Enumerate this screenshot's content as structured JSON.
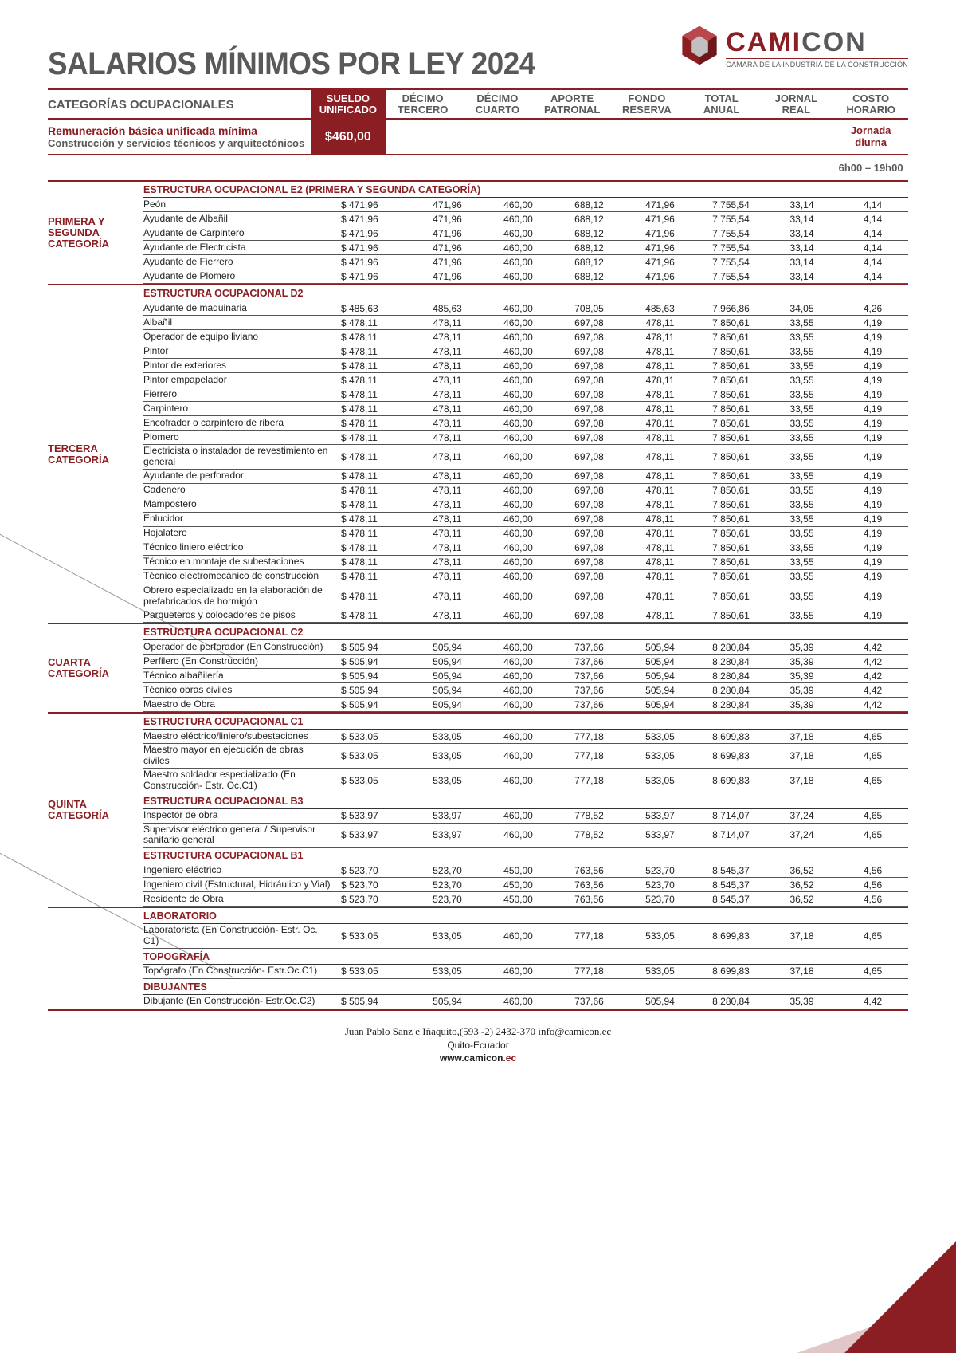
{
  "title": "SALARIOS MÍNIMOS POR LEY 2024",
  "logo": {
    "main1": "CAMI",
    "main2": "CON",
    "sub": "CÁMARA DE LA INDUSTRIA DE LA CONSTRUCCIÓN"
  },
  "band": {
    "left": "CATEGORÍAS OCUPACIONALES",
    "cols": [
      {
        "l1": "SUELDO",
        "l2": "UNIFICADO",
        "hl": true
      },
      {
        "l1": "DÉCIMO",
        "l2": "TERCERO"
      },
      {
        "l1": "DÉCIMO",
        "l2": "CUARTO"
      },
      {
        "l1": "APORTE",
        "l2": "PATRONAL"
      },
      {
        "l1": "FONDO",
        "l2": "RESERVA"
      },
      {
        "l1": "TOTAL",
        "l2": "ANUAL"
      },
      {
        "l1": "JORNAL",
        "l2": "REAL"
      },
      {
        "l1": "COSTO",
        "l2": "HORARIO"
      }
    ]
  },
  "subband": {
    "l1": "Remuneración básica unificada mínima",
    "l2": "Construcción y servicios técnicos y arquitectónicos",
    "sueldo": "$460,00",
    "jornada": "Jornada diurna"
  },
  "hours": "6h00 – 19h00",
  "sections": [
    {
      "category": "PRIMERA Y SEGUNDA CATEGORÍA",
      "groups": [
        {
          "header": "ESTRUCTURA OCUPACIONAL E2 (PRIMERA Y SEGUNDA CATEGORÍA)",
          "rows": [
            {
              "d": "Peón",
              "v": [
                "$ 471,96",
                "471,96",
                "460,00",
                "688,12",
                "471,96",
                "7.755,54",
                "33,14",
                "4,14"
              ]
            },
            {
              "d": "Ayudante de Albañil",
              "v": [
                "$ 471,96",
                "471,96",
                "460,00",
                "688,12",
                "471,96",
                "7.755,54",
                "33,14",
                "4,14"
              ]
            },
            {
              "d": "Ayudante de Carpintero",
              "v": [
                "$ 471,96",
                "471,96",
                "460,00",
                "688,12",
                "471,96",
                "7.755,54",
                "33,14",
                "4,14"
              ]
            },
            {
              "d": "Ayudante de Electricista",
              "v": [
                "$ 471,96",
                "471,96",
                "460,00",
                "688,12",
                "471,96",
                "7.755,54",
                "33,14",
                "4,14"
              ]
            },
            {
              "d": "Ayudante de Fierrero",
              "v": [
                "$ 471,96",
                "471,96",
                "460,00",
                "688,12",
                "471,96",
                "7.755,54",
                "33,14",
                "4,14"
              ]
            },
            {
              "d": "Ayudante de Plomero",
              "v": [
                "$ 471,96",
                "471,96",
                "460,00",
                "688,12",
                "471,96",
                "7.755,54",
                "33,14",
                "4,14"
              ]
            }
          ]
        }
      ]
    },
    {
      "category": "TERCERA CATEGORÍA",
      "groups": [
        {
          "header": "ESTRUCTURA OCUPACIONAL D2",
          "rows": [
            {
              "d": "Ayudante de maquinaria",
              "v": [
                "$ 485,63",
                "485,63",
                "460,00",
                "708,05",
                "485,63",
                "7.966,86",
                "34,05",
                "4,26"
              ]
            },
            {
              "d": "Albañil",
              "v": [
                "$ 478,11",
                "478,11",
                "460,00",
                "697,08",
                "478,11",
                "7.850,61",
                "33,55",
                "4,19"
              ]
            },
            {
              "d": "Operador de equipo liviano",
              "v": [
                "$ 478,11",
                "478,11",
                "460,00",
                "697,08",
                "478,11",
                "7.850,61",
                "33,55",
                "4,19"
              ]
            },
            {
              "d": "Pintor",
              "v": [
                "$ 478,11",
                "478,11",
                "460,00",
                "697,08",
                "478,11",
                "7.850,61",
                "33,55",
                "4,19"
              ]
            },
            {
              "d": "Pintor de exteriores",
              "v": [
                "$ 478,11",
                "478,11",
                "460,00",
                "697,08",
                "478,11",
                "7.850,61",
                "33,55",
                "4,19"
              ]
            },
            {
              "d": "Pintor empapelador",
              "v": [
                "$ 478,11",
                "478,11",
                "460,00",
                "697,08",
                "478,11",
                "7.850,61",
                "33,55",
                "4,19"
              ]
            },
            {
              "d": "Fierrero",
              "v": [
                "$ 478,11",
                "478,11",
                "460,00",
                "697,08",
                "478,11",
                "7.850,61",
                "33,55",
                "4,19"
              ]
            },
            {
              "d": "Carpintero",
              "v": [
                "$ 478,11",
                "478,11",
                "460,00",
                "697,08",
                "478,11",
                "7.850,61",
                "33,55",
                "4,19"
              ]
            },
            {
              "d": "Encofrador o carpintero de ribera",
              "v": [
                "$ 478,11",
                "478,11",
                "460,00",
                "697,08",
                "478,11",
                "7.850,61",
                "33,55",
                "4,19"
              ]
            },
            {
              "d": "Plomero",
              "v": [
                "$ 478,11",
                "478,11",
                "460,00",
                "697,08",
                "478,11",
                "7.850,61",
                "33,55",
                "4,19"
              ]
            },
            {
              "d": "Electricista o instalador de revestimiento en general",
              "v": [
                "$ 478,11",
                "478,11",
                "460,00",
                "697,08",
                "478,11",
                "7.850,61",
                "33,55",
                "4,19"
              ]
            },
            {
              "d": "Ayudante de perforador",
              "v": [
                "$ 478,11",
                "478,11",
                "460,00",
                "697,08",
                "478,11",
                "7.850,61",
                "33,55",
                "4,19"
              ]
            },
            {
              "d": "Cadenero",
              "v": [
                "$ 478,11",
                "478,11",
                "460,00",
                "697,08",
                "478,11",
                "7.850,61",
                "33,55",
                "4,19"
              ]
            },
            {
              "d": "Mampostero",
              "v": [
                "$ 478,11",
                "478,11",
                "460,00",
                "697,08",
                "478,11",
                "7.850,61",
                "33,55",
                "4,19"
              ]
            },
            {
              "d": "Enlucidor",
              "v": [
                "$ 478,11",
                "478,11",
                "460,00",
                "697,08",
                "478,11",
                "7.850,61",
                "33,55",
                "4,19"
              ]
            },
            {
              "d": "Hojalatero",
              "v": [
                "$ 478,11",
                "478,11",
                "460,00",
                "697,08",
                "478,11",
                "7.850,61",
                "33,55",
                "4,19"
              ]
            },
            {
              "d": "Técnico liniero eléctrico",
              "v": [
                "$ 478,11",
                "478,11",
                "460,00",
                "697,08",
                "478,11",
                "7.850,61",
                "33,55",
                "4,19"
              ]
            },
            {
              "d": "Técnico en montaje de subestaciones",
              "v": [
                "$ 478,11",
                "478,11",
                "460,00",
                "697,08",
                "478,11",
                "7.850,61",
                "33,55",
                "4,19"
              ]
            },
            {
              "d": "Técnico electromecánico de construcción",
              "v": [
                "$ 478,11",
                "478,11",
                "460,00",
                "697,08",
                "478,11",
                "7.850,61",
                "33,55",
                "4,19"
              ]
            },
            {
              "d": "Obrero especializado en la elaboración de prefabricados de hormigón",
              "v": [
                "$ 478,11",
                "478,11",
                "460,00",
                "697,08",
                "478,11",
                "7.850,61",
                "33,55",
                "4,19"
              ]
            },
            {
              "d": "Parqueteros y colocadores de pisos",
              "v": [
                "$ 478,11",
                "478,11",
                "460,00",
                "697,08",
                "478,11",
                "7.850,61",
                "33,55",
                "4,19"
              ]
            }
          ]
        }
      ]
    },
    {
      "category": "CUARTA CATEGORÍA",
      "groups": [
        {
          "header": "ESTRUCTURA OCUPACIONAL C2",
          "rows": [
            {
              "d": "Operador de perforador (En Construcción)",
              "v": [
                "$ 505,94",
                "505,94",
                "460,00",
                "737,66",
                "505,94",
                "8.280,84",
                "35,39",
                "4,42"
              ]
            },
            {
              "d": "Perfilero (En Construcción)",
              "v": [
                "$ 505,94",
                "505,94",
                "460,00",
                "737,66",
                "505,94",
                "8.280,84",
                "35,39",
                "4,42"
              ]
            },
            {
              "d": "Técnico albañilería",
              "v": [
                "$ 505,94",
                "505,94",
                "460,00",
                "737,66",
                "505,94",
                "8.280,84",
                "35,39",
                "4,42"
              ]
            },
            {
              "d": "Técnico obras civiles",
              "v": [
                "$ 505,94",
                "505,94",
                "460,00",
                "737,66",
                "505,94",
                "8.280,84",
                "35,39",
                "4,42"
              ]
            },
            {
              "d": "Maestro de Obra",
              "v": [
                "$ 505,94",
                "505,94",
                "460,00",
                "737,66",
                "505,94",
                "8.280,84",
                "35,39",
                "4,42"
              ]
            }
          ]
        }
      ]
    },
    {
      "category": "QUINTA CATEGORÍA",
      "groups": [
        {
          "header": "ESTRUCTURA OCUPACIONAL C1",
          "rows": [
            {
              "d": "Maestro eléctrico/liniero/subestaciones",
              "v": [
                "$ 533,05",
                "533,05",
                "460,00",
                "777,18",
                "533,05",
                "8.699,83",
                "37,18",
                "4,65"
              ]
            },
            {
              "d": "Maestro mayor en ejecución de obras civiles",
              "v": [
                "$ 533,05",
                "533,05",
                "460,00",
                "777,18",
                "533,05",
                "8.699,83",
                "37,18",
                "4,65"
              ]
            },
            {
              "d": "Maestro soldador especializado (En Construcción- Estr. Oc.C1)",
              "v": [
                "$ 533,05",
                "533,05",
                "460,00",
                "777,18",
                "533,05",
                "8.699,83",
                "37,18",
                "4,65"
              ]
            }
          ]
        },
        {
          "header": "ESTRUCTURA OCUPACIONAL B3",
          "rows": [
            {
              "d": "Inspector de obra",
              "v": [
                "$ 533,97",
                "533,97",
                "460,00",
                "778,52",
                "533,97",
                "8.714,07",
                "37,24",
                "4,65"
              ]
            },
            {
              "d": "Supervisor eléctrico general / Supervisor sanitario general",
              "v": [
                "$ 533,97",
                "533,97",
                "460,00",
                "778,52",
                "533,97",
                "8.714,07",
                "37,24",
                "4,65"
              ]
            }
          ]
        },
        {
          "header": "ESTRUCTURA OCUPACIONAL B1",
          "rows": [
            {
              "d": "Ingeniero eléctrico",
              "v": [
                "$ 523,70",
                "523,70",
                "450,00",
                "763,56",
                "523,70",
                "8.545,37",
                "36,52",
                "4,56"
              ]
            },
            {
              "d": "Ingeniero civil (Estructural, Hidráulico y Vial)",
              "v": [
                "$ 523,70",
                "523,70",
                "450,00",
                "763,56",
                "523,70",
                "8.545,37",
                "36,52",
                "4,56"
              ]
            },
            {
              "d": "Residente de Obra",
              "v": [
                "$ 523,70",
                "523,70",
                "450,00",
                "763,56",
                "523,70",
                "8.545,37",
                "36,52",
                "4,56"
              ]
            }
          ]
        }
      ]
    },
    {
      "category": "",
      "groups": [
        {
          "header": "LABORATORIO",
          "rows": [
            {
              "d": "Laboratorista (En Construcción- Estr. Oc. C1)",
              "v": [
                "$ 533,05",
                "533,05",
                "460,00",
                "777,18",
                "533,05",
                "8.699,83",
                "37,18",
                "4,65"
              ]
            }
          ]
        },
        {
          "header": "TOPOGRAFÍA",
          "rows": [
            {
              "d": "Topógrafo (En Construcción- Estr.Oc.C1)",
              "v": [
                "$ 533,05",
                "533,05",
                "460,00",
                "777,18",
                "533,05",
                "8.699,83",
                "37,18",
                "4,65"
              ]
            }
          ]
        },
        {
          "header": "DIBUJANTES",
          "rows": [
            {
              "d": "Dibujante (En Construcción- Estr.Oc.C2)",
              "v": [
                "$ 505,94",
                "505,94",
                "460,00",
                "737,66",
                "505,94",
                "8.280,84",
                "35,39",
                "4,42"
              ]
            }
          ]
        }
      ]
    }
  ],
  "footer": {
    "line1": "Juan Pablo Sanz e Iñaquito,(593 -2) 2432-370 info@camicon.ec",
    "line2": "Quito-Ecuador",
    "line3a": "www.",
    "line3b": "camicon",
    "line3c": ".ec"
  },
  "colors": {
    "brand": "#8a1e22",
    "gray": "#58595b"
  }
}
